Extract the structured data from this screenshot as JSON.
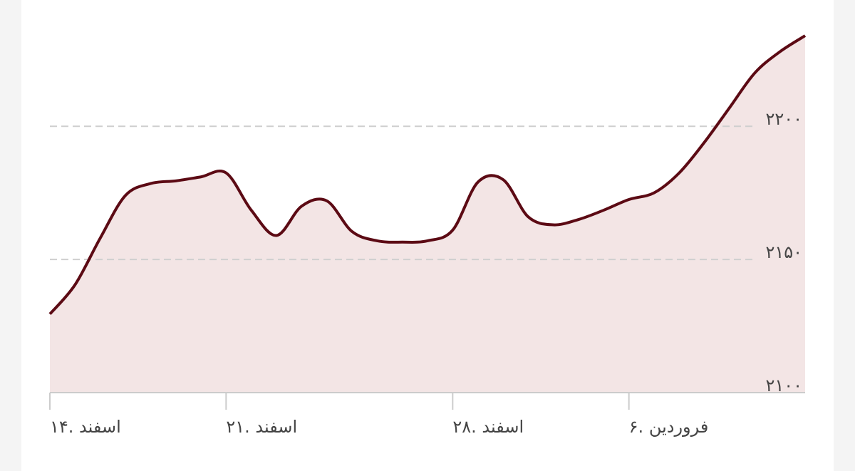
{
  "chart_data": {
    "type": "area",
    "categories": [
      "۱۴. اسفند",
      null,
      null,
      null,
      null,
      null,
      null,
      "۲۱. اسفند",
      null,
      null,
      null,
      null,
      null,
      null,
      null,
      null,
      "۲۸. اسفند",
      null,
      null,
      null,
      null,
      null,
      null,
      "۶. فروردین",
      null,
      null,
      null,
      null,
      null,
      null,
      null
    ],
    "series": [
      {
        "color": "#5c0a14",
        "fill": "#f3e5e5",
        "values": [
          2129.5,
          2140.5,
          2158,
          2174,
          2178.5,
          2179.5,
          2181,
          2182.5,
          2168.5,
          2159,
          2170,
          2172,
          2160.5,
          2157,
          2156.5,
          2157,
          2161,
          2179,
          2180,
          2166,
          2163,
          2165,
          2168.5,
          2172.5,
          2175,
          2182.5,
          2194,
          2207,
          2220,
          2228,
          2234
        ]
      }
    ],
    "ylim": [
      2100,
      2245
    ],
    "yticks": [
      {
        "value": 2100,
        "label": "۲۱۰۰"
      },
      {
        "value": 2150,
        "label": "۲۱۵۰"
      },
      {
        "value": 2200,
        "label": "۲۲۰۰"
      }
    ],
    "grid": true
  }
}
